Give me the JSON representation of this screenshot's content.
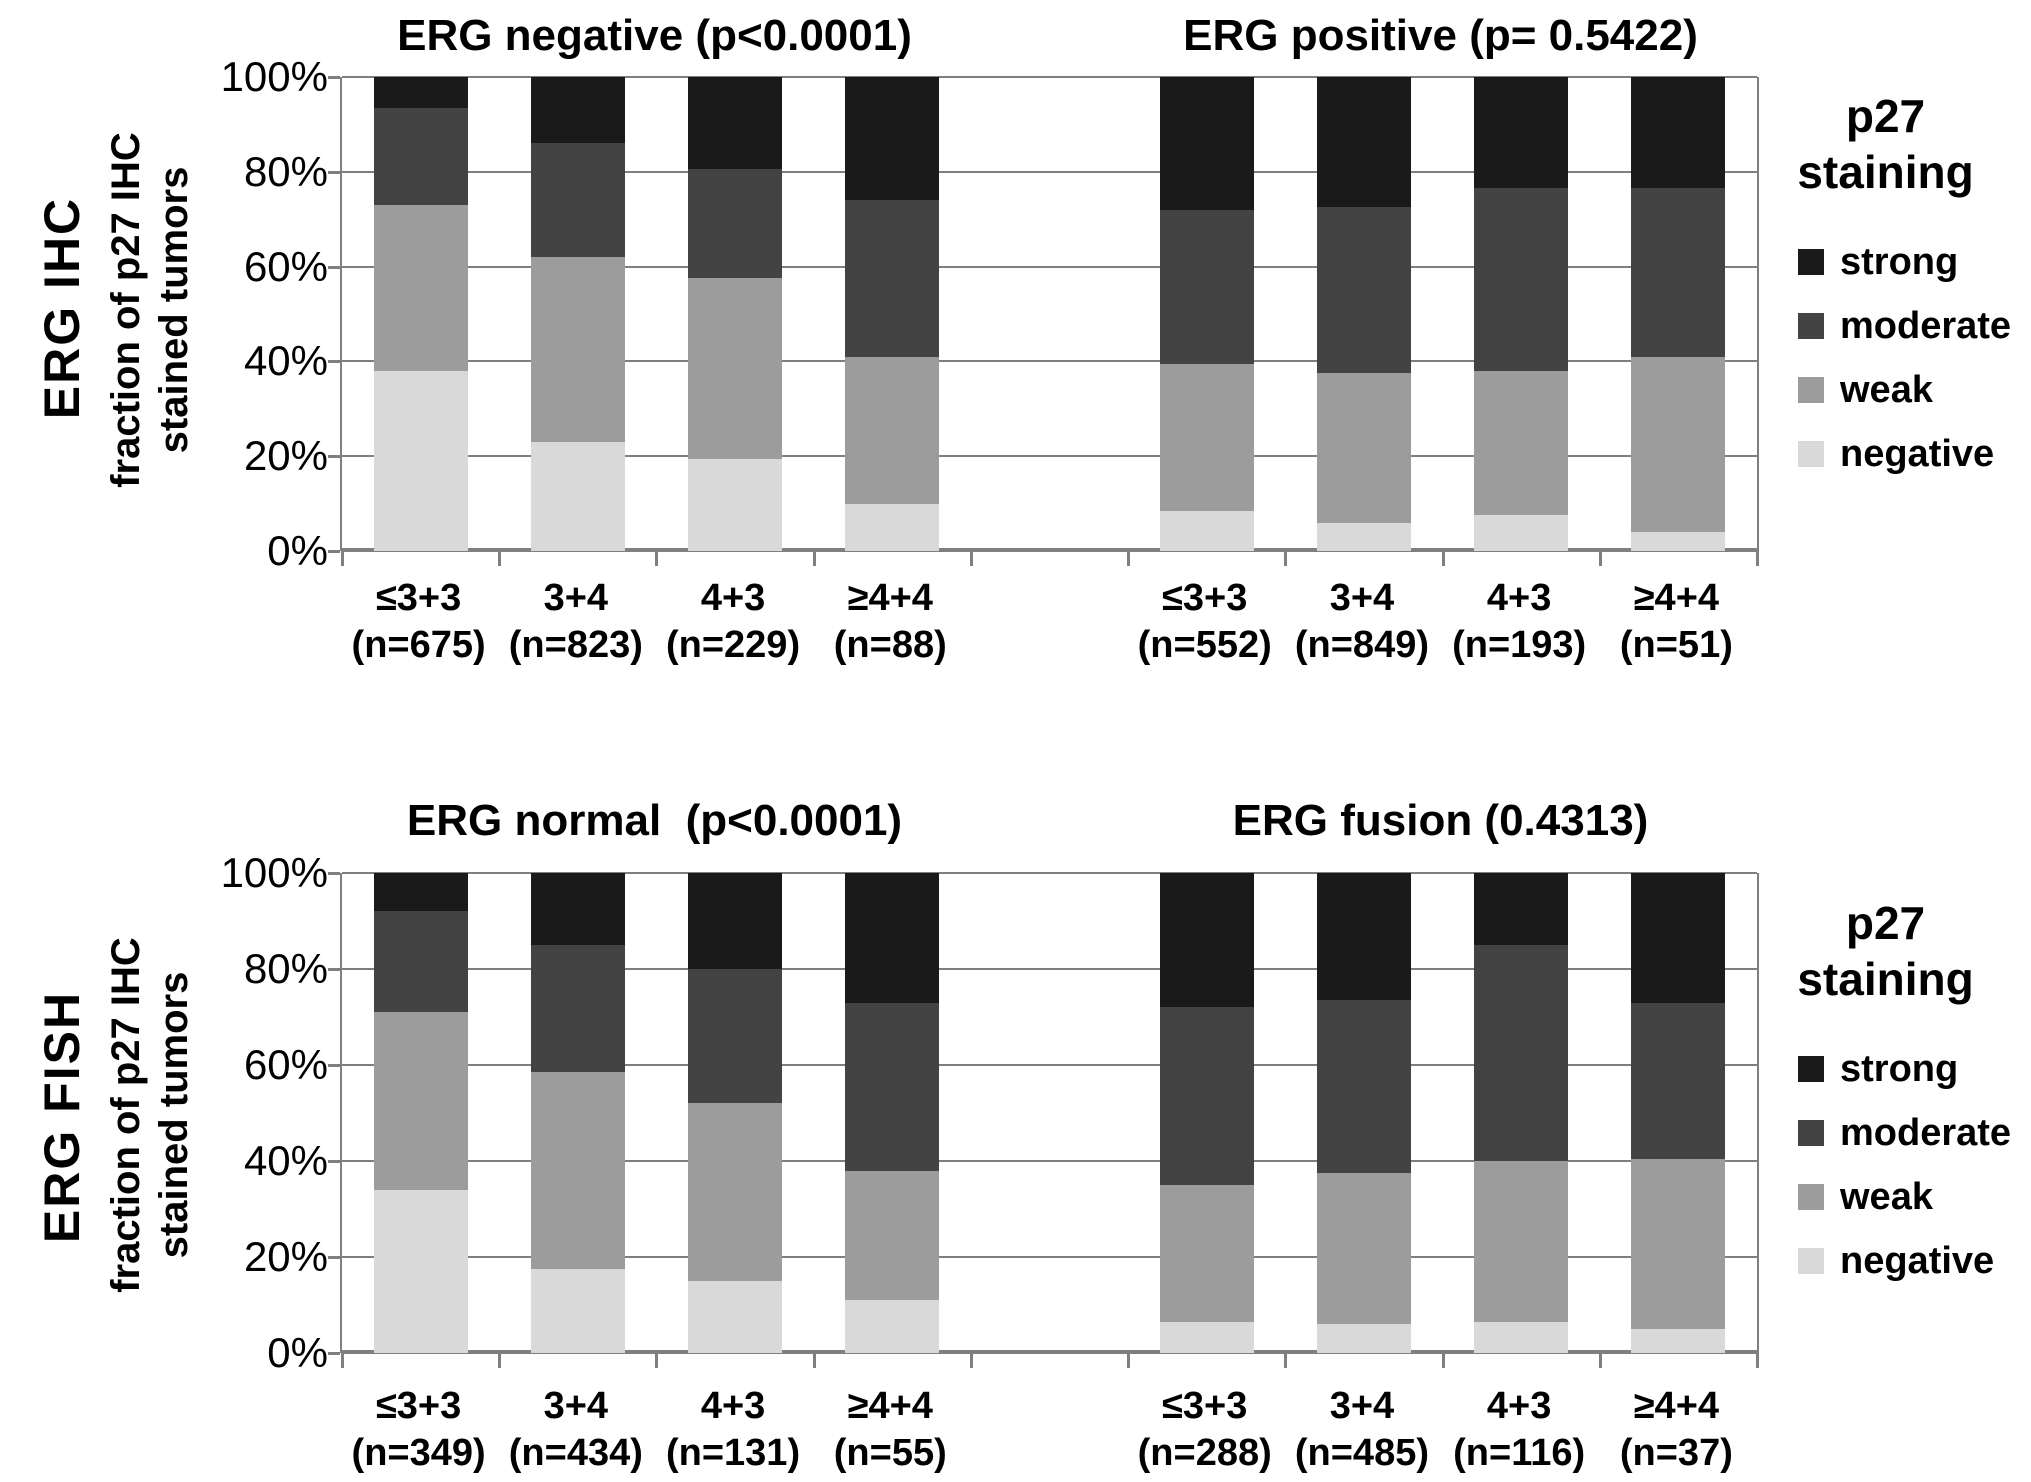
{
  "figure": {
    "background": "#ffffff",
    "grid_color": "#7f7f7f",
    "colors": {
      "strong": "#1a1a1a",
      "moderate": "#434343",
      "weak": "#9c9c9c",
      "negative": "#d9d9d9"
    },
    "legend": {
      "title_line1": "p27",
      "title_line2": "staining",
      "items": [
        "strong",
        "moderate",
        "weak",
        "negative"
      ],
      "position": "right"
    },
    "y_axis": {
      "ticks": [
        "100%",
        "80%",
        "60%",
        "40%",
        "20%",
        "0%"
      ],
      "label_line1": "fraction of p27 IHC",
      "label_line2": "stained tumors"
    }
  },
  "chart_data": [
    {
      "type": "bar",
      "stacked": true,
      "row_label": "ERG IHC",
      "ylabel": "fraction of p27 IHC stained tumors",
      "ylim": [
        0,
        100
      ],
      "grid": true,
      "groups": [
        {
          "title": "ERG negative (p<0.0001)",
          "categories": [
            "≤3+3",
            "3+4",
            "4+3",
            "≥4+4"
          ],
          "n_labels": [
            "(n=675)",
            "(n=823)",
            "(n=229)",
            "(n=88)"
          ],
          "series": [
            {
              "name": "negative",
              "values": [
                38,
                23,
                19.5,
                10
              ]
            },
            {
              "name": "weak",
              "values": [
                35,
                39,
                38,
                31
              ]
            },
            {
              "name": "moderate",
              "values": [
                20.5,
                24,
                23,
                33
              ]
            },
            {
              "name": "strong",
              "values": [
                6.5,
                14,
                19.5,
                26
              ]
            }
          ]
        },
        {
          "title": "ERG positive (p= 0.5422)",
          "categories": [
            "≤3+3",
            "3+4",
            "4+3",
            "≥4+4"
          ],
          "n_labels": [
            "(n=552)",
            "(n=849)",
            "(n=193)",
            "(n=51)"
          ],
          "series": [
            {
              "name": "negative",
              "values": [
                8.5,
                6,
                7.5,
                4
              ]
            },
            {
              "name": "weak",
              "values": [
                31,
                31.5,
                30.5,
                37
              ]
            },
            {
              "name": "moderate",
              "values": [
                32.5,
                35,
                38.5,
                35.5
              ]
            },
            {
              "name": "strong",
              "values": [
                28,
                27.5,
                23.5,
                23.5
              ]
            }
          ]
        }
      ]
    },
    {
      "type": "bar",
      "stacked": true,
      "row_label": "ERG FISH",
      "ylabel": "fraction of p27 IHC stained tumors",
      "ylim": [
        0,
        100
      ],
      "grid": true,
      "groups": [
        {
          "title": "ERG normal  (p<0.0001)",
          "categories": [
            "≤3+3",
            "3+4",
            "4+3",
            "≥4+4"
          ],
          "n_labels": [
            "(n=349)",
            "(n=434)",
            "(n=131)",
            "(n=55)"
          ],
          "series": [
            {
              "name": "negative",
              "values": [
                34,
                17.5,
                15,
                11
              ]
            },
            {
              "name": "weak",
              "values": [
                37,
                41,
                37,
                27
              ]
            },
            {
              "name": "moderate",
              "values": [
                21,
                26.5,
                28,
                35
              ]
            },
            {
              "name": "strong",
              "values": [
                8,
                15,
                20,
                27
              ]
            }
          ]
        },
        {
          "title": "ERG fusion (0.4313)",
          "categories": [
            "≤3+3",
            "3+4",
            "4+3",
            "≥4+4"
          ],
          "n_labels": [
            "(n=288)",
            "(n=485)",
            "(n=116)",
            "(n=37)"
          ],
          "series": [
            {
              "name": "negative",
              "values": [
                6.5,
                6,
                6.5,
                5
              ]
            },
            {
              "name": "weak",
              "values": [
                28.5,
                31.5,
                33.5,
                35.5
              ]
            },
            {
              "name": "moderate",
              "values": [
                37,
                36,
                45,
                32.5
              ]
            },
            {
              "name": "strong",
              "values": [
                28,
                26.5,
                15,
                27
              ]
            }
          ]
        }
      ]
    }
  ]
}
